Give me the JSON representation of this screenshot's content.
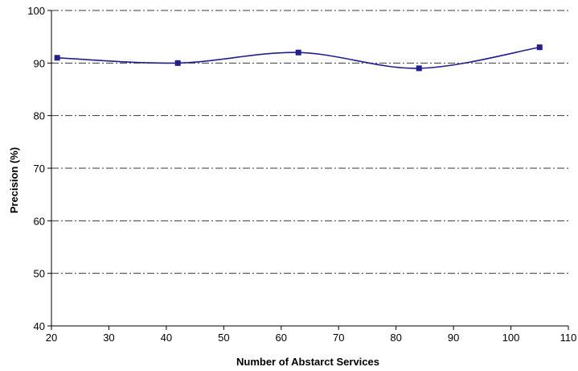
{
  "chart_data": {
    "type": "line",
    "title": "",
    "xlabel": "Number of Abstarct Services",
    "ylabel": "Precision (%)",
    "xlim": [
      20,
      110
    ],
    "ylim": [
      40,
      100
    ],
    "x_ticks": [
      "20",
      "30",
      "40",
      "50",
      "60",
      "70",
      "80",
      "90",
      "100",
      "110"
    ],
    "y_ticks": [
      "40",
      "50",
      "60",
      "70",
      "80",
      "90",
      "100"
    ],
    "grid": "horizontal dash-dot",
    "legend": "none",
    "smooth": true,
    "series": [
      {
        "x": [
          21,
          42,
          63,
          84,
          105
        ],
        "y": [
          91,
          90,
          92,
          89,
          93
        ],
        "color": "#1f1f8f",
        "marker": "square"
      }
    ]
  }
}
